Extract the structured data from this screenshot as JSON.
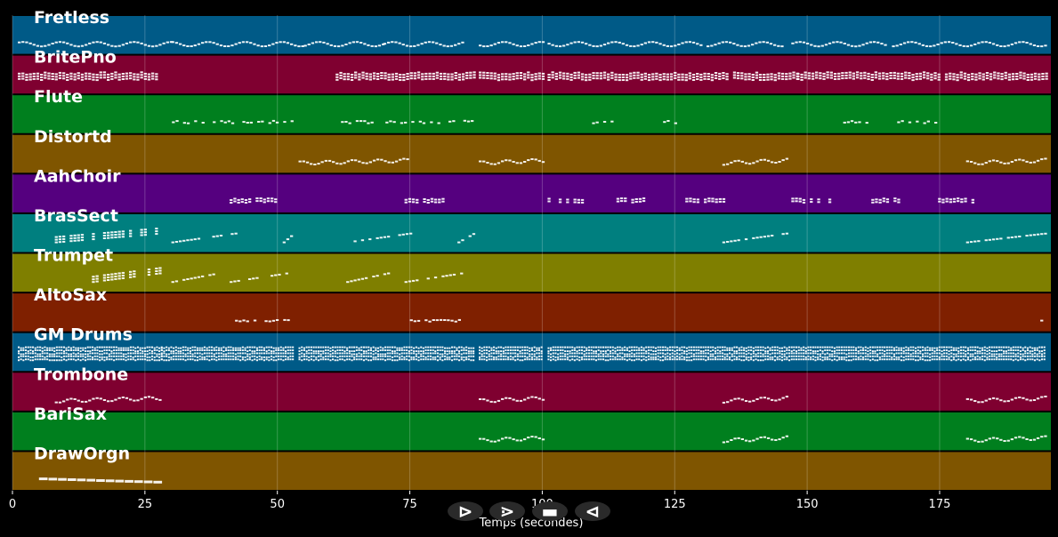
{
  "chart_data": {
    "type": "piano-roll",
    "xlabel": "Temps (secondes)",
    "xlim": [
      0,
      196
    ],
    "x_ticks": [
      0,
      25,
      50,
      75,
      100,
      125,
      150,
      175
    ],
    "grid": true,
    "tracks": [
      {
        "name": "Fretless",
        "color": "#005a87",
        "segments": [
          [
            1,
            30
          ],
          [
            30,
            55
          ],
          [
            55,
            70
          ],
          [
            70,
            85
          ],
          [
            88,
            100
          ],
          [
            101,
            130
          ],
          [
            131,
            145
          ],
          [
            147,
            165
          ],
          [
            166,
            195
          ]
        ],
        "profile": "bass"
      },
      {
        "name": "BritePno",
        "color": "#7f0030",
        "segments": [
          [
            1,
            27
          ],
          [
            61,
            87
          ],
          [
            88,
            100
          ],
          [
            101,
            135
          ],
          [
            136,
            148
          ],
          [
            148,
            175
          ],
          [
            176,
            195
          ]
        ],
        "profile": "piano"
      },
      {
        "name": "Flute",
        "color": "#007f1e",
        "segments": [
          [
            28,
            53
          ],
          [
            62,
            87
          ],
          [
            108,
            115
          ],
          [
            120,
            127
          ],
          [
            154,
            161
          ],
          [
            167,
            174
          ]
        ],
        "profile": "sparse"
      },
      {
        "name": "Distortd",
        "color": "#7f5500",
        "segments": [
          [
            54,
            75
          ],
          [
            88,
            100
          ],
          [
            134,
            146
          ],
          [
            180,
            195
          ]
        ],
        "profile": "line"
      },
      {
        "name": "AahChoir",
        "color": "#55007f",
        "segments": [
          [
            41,
            50
          ],
          [
            74,
            83
          ],
          [
            101,
            108
          ],
          [
            114,
            120
          ],
          [
            127,
            134
          ],
          [
            147,
            154
          ],
          [
            160,
            167
          ],
          [
            174,
            181
          ]
        ],
        "profile": "chord"
      },
      {
        "name": "BrasSect",
        "color": "#007f7f",
        "segments": [
          [
            8,
            28
          ],
          [
            30,
            42
          ],
          [
            51,
            53
          ],
          [
            63,
            75
          ],
          [
            84,
            87
          ],
          [
            134,
            146
          ],
          [
            180,
            195
          ]
        ],
        "profile": "rise"
      },
      {
        "name": "Trumpet",
        "color": "#7f7f00",
        "segments": [
          [
            15,
            28
          ],
          [
            30,
            39
          ],
          [
            41,
            52
          ],
          [
            63,
            71
          ],
          [
            74,
            85
          ]
        ],
        "profile": "rise"
      },
      {
        "name": "AltoSax",
        "color": "#7f2000",
        "segments": [
          [
            42,
            52
          ],
          [
            75,
            85
          ],
          [
            194,
            195
          ]
        ],
        "profile": "flat"
      },
      {
        "name": "GM Drums",
        "color": "#005a87",
        "segments": [
          [
            1,
            28
          ],
          [
            28,
            53
          ],
          [
            54,
            87
          ],
          [
            88,
            100
          ],
          [
            101,
            195
          ]
        ],
        "profile": "drums"
      },
      {
        "name": "Trombone",
        "color": "#7f0030",
        "segments": [
          [
            8,
            28
          ],
          [
            88,
            100
          ],
          [
            134,
            146
          ],
          [
            180,
            195
          ]
        ],
        "profile": "line"
      },
      {
        "name": "BariSax",
        "color": "#007f1e",
        "segments": [
          [
            88,
            100
          ],
          [
            134,
            146
          ],
          [
            180,
            195
          ]
        ],
        "profile": "line"
      },
      {
        "name": "DrawOrgn",
        "color": "#7f5500",
        "segments": [
          [
            5,
            28
          ]
        ],
        "profile": "organ"
      }
    ]
  },
  "controls": {
    "buttons": [
      {
        "name": "play-button",
        "glyph": "⊳"
      },
      {
        "name": "forward-button",
        "glyph": "⋗"
      },
      {
        "name": "stop-button",
        "glyph": "▬"
      },
      {
        "name": "rewind-button",
        "glyph": "⊲"
      }
    ]
  }
}
